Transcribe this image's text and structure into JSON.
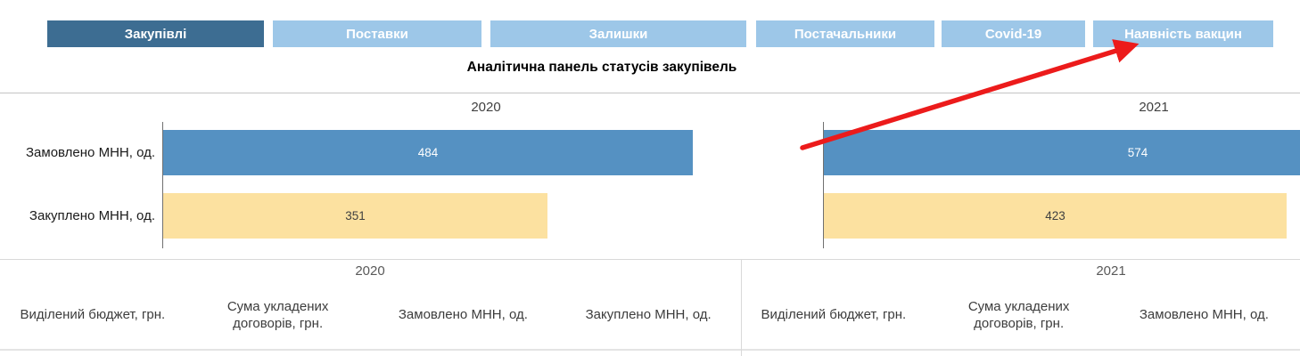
{
  "header": {
    "tabs": [
      {
        "label": "Закупівлі",
        "active": true
      },
      {
        "label": "Поставки",
        "active": false
      },
      {
        "label": "Залишки",
        "active": false
      },
      {
        "label": "Постачальники",
        "active": false
      },
      {
        "label": "Covid-19",
        "active": false
      },
      {
        "label": "Наявність вакцин",
        "active": false
      }
    ],
    "title": "Аналітична панель статусів закупівель"
  },
  "chart_data": {
    "type": "bar",
    "orientation": "horizontal",
    "title": "Аналітична панель статусів закупівель",
    "categories": [
      "Замовлено МНН, од.",
      "Закуплено МНН, од."
    ],
    "series": [
      {
        "name": "2020",
        "values": [
          484,
          351
        ]
      },
      {
        "name": "2021",
        "values": [
          574,
          423
        ]
      }
    ],
    "bar_colors": [
      "#5591C2",
      "#FCE1A0"
    ],
    "value_label_colors": [
      "#FFFFFF",
      "#404040"
    ],
    "value_labels_shown": true,
    "grid": false,
    "legend": "none",
    "note_2021_clipped": "2021 bars are drawn at the same scale and run past the right edge of the view"
  },
  "table": {
    "sections": [
      {
        "year": "2020",
        "columns": [
          "Виділений бюджет, грн.",
          "Сума укладених договорів, грн.",
          "Замовлено МНН, од.",
          "Закуплено МНН, од."
        ]
      },
      {
        "year": "2021",
        "columns": [
          "Виділений бюджет, грн.",
          "Сума укладених договорів, грн.",
          "Замовлено МНН, од."
        ]
      }
    ]
  },
  "annotation_arrow": {
    "color": "#EC1B1B",
    "points_to": "Наявність вакцин"
  }
}
